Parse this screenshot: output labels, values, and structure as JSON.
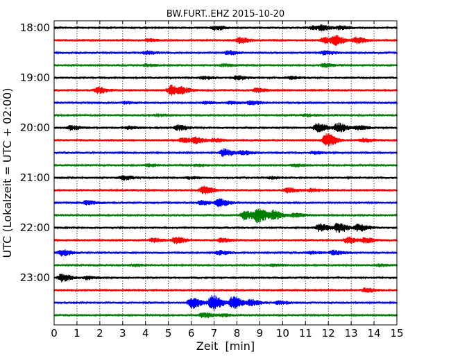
{
  "chart_data": {
    "type": "line",
    "title": "BW.FURT..EHZ 2015-10-20",
    "xlabel": "Zeit  [min]",
    "ylabel": "UTC (Lokalzeit = UTC + 02:00)",
    "xlim": [
      0,
      15
    ],
    "x_ticks": [
      "0",
      "1",
      "2",
      "3",
      "4",
      "5",
      "6",
      "7",
      "8",
      "9",
      "10",
      "11",
      "12",
      "13",
      "14",
      "15"
    ],
    "y_tick_labels": [
      "18:00",
      "19:00",
      "20:00",
      "21:00",
      "22:00",
      "23:00"
    ],
    "grid": "vertical-dotted",
    "series_colors": [
      "#000000",
      "#ff0000",
      "#0000ff",
      "#008000"
    ],
    "traces": [
      {
        "start": "18:00",
        "color": "#000000",
        "events": [
          [
            7.0,
            0.7
          ],
          [
            11.3,
            0.5
          ],
          [
            11.7,
            0.7
          ],
          [
            12.5,
            0.6
          ]
        ]
      },
      {
        "start": "18:15",
        "color": "#ff0000",
        "events": [
          [
            4.1,
            0.4
          ],
          [
            8.1,
            0.9
          ],
          [
            11.8,
            0.9
          ],
          [
            12.3,
            1.3
          ],
          [
            13.2,
            1.0
          ]
        ]
      },
      {
        "start": "18:30",
        "color": "#0000ff",
        "events": [
          [
            4.0,
            0.5
          ],
          [
            7.6,
            0.6
          ],
          [
            11.8,
            0.6
          ]
        ]
      },
      {
        "start": "18:45",
        "color": "#008000",
        "events": [
          [
            4.0,
            0.3
          ],
          [
            7.4,
            0.4
          ],
          [
            11.8,
            0.5
          ]
        ]
      },
      {
        "start": "19:00",
        "color": "#000000",
        "events": [
          [
            6.5,
            0.4
          ],
          [
            8.0,
            0.6
          ],
          [
            10.3,
            0.4
          ]
        ]
      },
      {
        "start": "19:15",
        "color": "#ff0000",
        "events": [
          [
            1.9,
            1.0
          ],
          [
            5.1,
            1.6
          ],
          [
            5.6,
            0.7
          ],
          [
            8.8,
            0.6
          ]
        ]
      },
      {
        "start": "19:30",
        "color": "#0000ff",
        "events": [
          [
            3.1,
            0.3
          ],
          [
            6.6,
            0.4
          ],
          [
            7.7,
            0.4
          ],
          [
            8.6,
            0.6
          ]
        ]
      },
      {
        "start": "19:45",
        "color": "#008000",
        "events": [
          [
            4.5,
            0.3
          ],
          [
            11.0,
            0.3
          ]
        ]
      },
      {
        "start": "20:00",
        "color": "#000000",
        "events": [
          [
            0.7,
            0.7
          ],
          [
            3.2,
            0.4
          ],
          [
            5.4,
            0.8
          ],
          [
            11.5,
            1.4
          ],
          [
            12.4,
            1.5
          ],
          [
            13.3,
            0.6
          ]
        ]
      },
      {
        "start": "20:15",
        "color": "#ff0000",
        "events": [
          [
            5.6,
            0.7
          ],
          [
            6.2,
            0.9
          ],
          [
            7.0,
            0.5
          ],
          [
            11.9,
            2.2
          ],
          [
            13.5,
            0.6
          ]
        ]
      },
      {
        "start": "20:30",
        "color": "#0000ff",
        "events": [
          [
            7.4,
            1.2
          ],
          [
            8.2,
            0.7
          ],
          [
            11.3,
            0.4
          ]
        ]
      },
      {
        "start": "20:45",
        "color": "#008000",
        "events": [
          [
            4.1,
            0.4
          ],
          [
            6.2,
            0.3
          ],
          [
            10.5,
            0.4
          ]
        ]
      },
      {
        "start": "21:00",
        "color": "#000000",
        "events": [
          [
            3.0,
            0.6
          ],
          [
            5.9,
            0.3
          ],
          [
            9.5,
            0.3
          ]
        ]
      },
      {
        "start": "21:15",
        "color": "#ff0000",
        "events": [
          [
            6.5,
            1.3
          ],
          [
            10.2,
            0.7
          ],
          [
            11.2,
            0.5
          ]
        ]
      },
      {
        "start": "21:30",
        "color": "#0000ff",
        "events": [
          [
            1.4,
            0.6
          ],
          [
            6.4,
            0.6
          ],
          [
            7.2,
            1.2
          ]
        ]
      },
      {
        "start": "21:45",
        "color": "#008000",
        "events": [
          [
            8.3,
            1.5
          ],
          [
            8.9,
            2.3
          ],
          [
            9.6,
            1.3
          ],
          [
            10.5,
            0.6
          ]
        ]
      },
      {
        "start": "22:00",
        "color": "#000000",
        "events": [
          [
            11.6,
            1.2
          ],
          [
            12.4,
            1.6
          ],
          [
            13.3,
            1.2
          ]
        ]
      },
      {
        "start": "22:15",
        "color": "#ff0000",
        "events": [
          [
            4.3,
            0.6
          ],
          [
            5.3,
            1.0
          ],
          [
            7.3,
            0.6
          ],
          [
            12.8,
            1.0
          ],
          [
            13.6,
            0.8
          ]
        ]
      },
      {
        "start": "22:30",
        "color": "#0000ff",
        "events": [
          [
            0.3,
            1.0
          ],
          [
            7.2,
            0.6
          ],
          [
            11.2,
            0.4
          ],
          [
            12.2,
            0.7
          ]
        ]
      },
      {
        "start": "22:45",
        "color": "#008000",
        "events": [
          [
            3.5,
            0.3
          ],
          [
            9.6,
            0.3
          ],
          [
            14.2,
            0.3
          ]
        ]
      },
      {
        "start": "23:00",
        "color": "#000000",
        "events": [
          [
            0.3,
            1.2
          ],
          [
            1.4,
            0.5
          ]
        ]
      },
      {
        "start": "23:15",
        "color": "#ff0000",
        "events": [
          [
            13.6,
            0.6
          ]
        ]
      },
      {
        "start": "23:30",
        "color": "#0000ff",
        "events": [
          [
            6.0,
            1.8
          ],
          [
            6.9,
            2.6
          ],
          [
            7.8,
            2.0
          ],
          [
            8.6,
            0.9
          ],
          [
            9.8,
            0.5
          ]
        ]
      },
      {
        "start": "23:45",
        "color": "#008000",
        "events": [
          [
            6.5,
            0.8
          ],
          [
            7.3,
            0.4
          ]
        ]
      }
    ]
  }
}
